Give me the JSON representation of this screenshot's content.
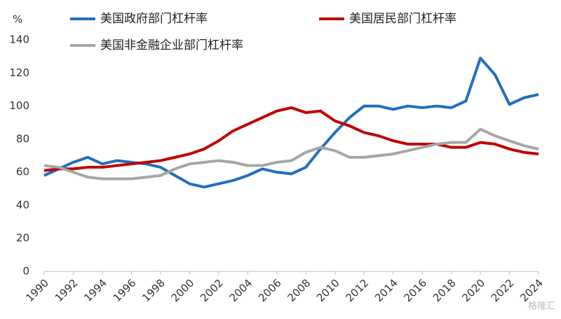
{
  "chart_data": {
    "type": "line",
    "y_label": "%",
    "x": [
      1990,
      1991,
      1992,
      1993,
      1994,
      1995,
      1996,
      1997,
      1998,
      1999,
      2000,
      2001,
      2002,
      2003,
      2004,
      2005,
      2006,
      2007,
      2008,
      2009,
      2010,
      2011,
      2012,
      2013,
      2014,
      2015,
      2016,
      2017,
      2018,
      2019,
      2020,
      2021,
      2022,
      2023,
      2024
    ],
    "xlim": [
      1990,
      2024
    ],
    "xticks": [
      1990,
      1992,
      1994,
      1996,
      1998,
      2000,
      2002,
      2004,
      2006,
      2008,
      2010,
      2012,
      2014,
      2016,
      2018,
      2020,
      2022,
      2024
    ],
    "ylim": [
      0,
      140
    ],
    "yticks": [
      0,
      20,
      40,
      60,
      80,
      100,
      120,
      140
    ],
    "grid": false,
    "series": [
      {
        "name": "美国政府部门杠杆率",
        "color": "#1f6fbf",
        "values": [
          58,
          62,
          66,
          69,
          65,
          67,
          66,
          65,
          63,
          58,
          53,
          51,
          53,
          55,
          58,
          62,
          60,
          59,
          63,
          74,
          84,
          93,
          100,
          100,
          98,
          100,
          99,
          100,
          99,
          103,
          129,
          119,
          101,
          105,
          107
        ]
      },
      {
        "name": "美国居民部门杠杆率",
        "color": "#c00000",
        "values": [
          61,
          62,
          62,
          63,
          63,
          64,
          65,
          66,
          67,
          69,
          71,
          74,
          79,
          85,
          89,
          93,
          97,
          99,
          96,
          97,
          91,
          88,
          84,
          82,
          79,
          77,
          77,
          77,
          75,
          75,
          78,
          77,
          74,
          72,
          71
        ]
      },
      {
        "name": "美国非金融企业部门杠杆率",
        "color": "#a6a6a6",
        "values": [
          64,
          63,
          60,
          57,
          56,
          56,
          56,
          57,
          58,
          62,
          65,
          66,
          67,
          66,
          64,
          64,
          66,
          67,
          72,
          75,
          73,
          69,
          69,
          70,
          71,
          73,
          75,
          77,
          78,
          78,
          86,
          82,
          79,
          76,
          74
        ]
      }
    ],
    "watermark": "格隆汇"
  }
}
